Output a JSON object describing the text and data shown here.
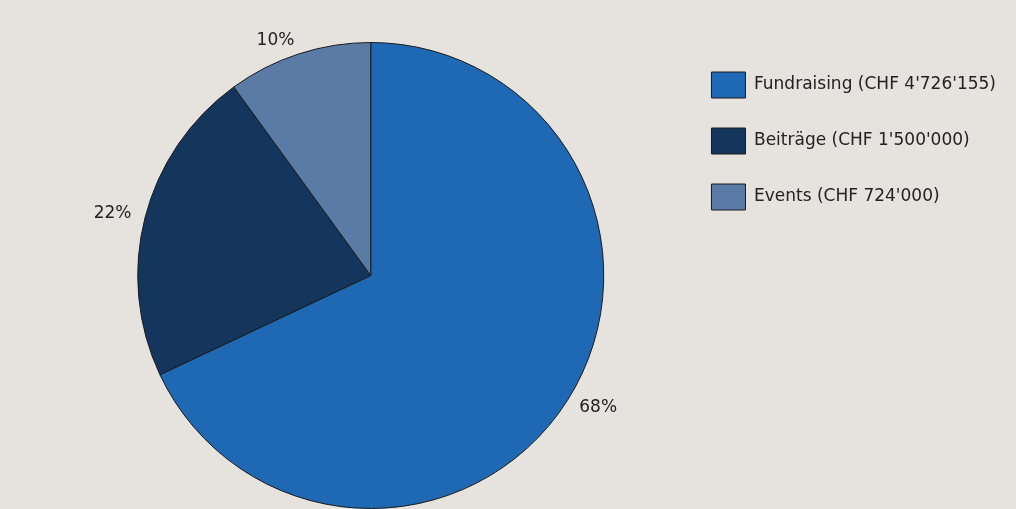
{
  "chart_data": {
    "type": "pie",
    "categories": [
      "Fundraising (CHF 4'726'155)",
      "Beiträge (CHF 1'500'000)",
      "Events (CHF 724'000)"
    ],
    "values": [
      68,
      22,
      10
    ],
    "colors": [
      "#1f69b4",
      "#14365c",
      "#5a7ba6"
    ],
    "value_labels": [
      "68%",
      "22%",
      "10%"
    ],
    "legend": "top right"
  }
}
